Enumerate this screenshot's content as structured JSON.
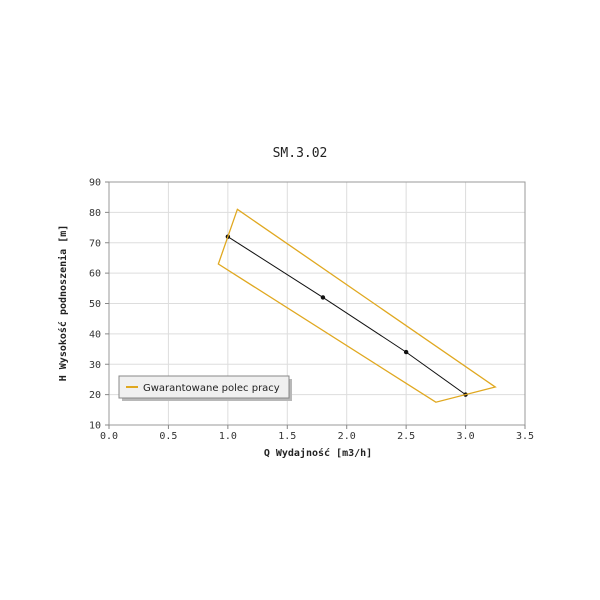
{
  "chart_data": {
    "type": "line",
    "title": "SM.3.02",
    "xlabel": "Q Wydajność [m3/h]",
    "ylabel": "H Wysokość podnoszenia [m]",
    "xlim": [
      0,
      3.5
    ],
    "ylim": [
      10,
      90
    ],
    "xticks": [
      "0.0",
      "0.5",
      "1.0",
      "1.5",
      "2.0",
      "2.5",
      "3.0",
      "3.5"
    ],
    "yticks": [
      "10",
      "20",
      "30",
      "40",
      "50",
      "60",
      "70",
      "80",
      "90"
    ],
    "grid": true,
    "legend_position": "bottom-left",
    "series": [
      {
        "color": "#111111",
        "x": [
          1.0,
          1.8,
          2.5,
          3.0
        ],
        "y": [
          72,
          52,
          34,
          20
        ]
      },
      {
        "name": "Gwarantowane polec pracy",
        "color": "#e0a820",
        "closed": true,
        "x": [
          1.08,
          3.25,
          2.75,
          0.92
        ],
        "y": [
          81,
          22.5,
          17.5,
          63
        ]
      }
    ]
  }
}
